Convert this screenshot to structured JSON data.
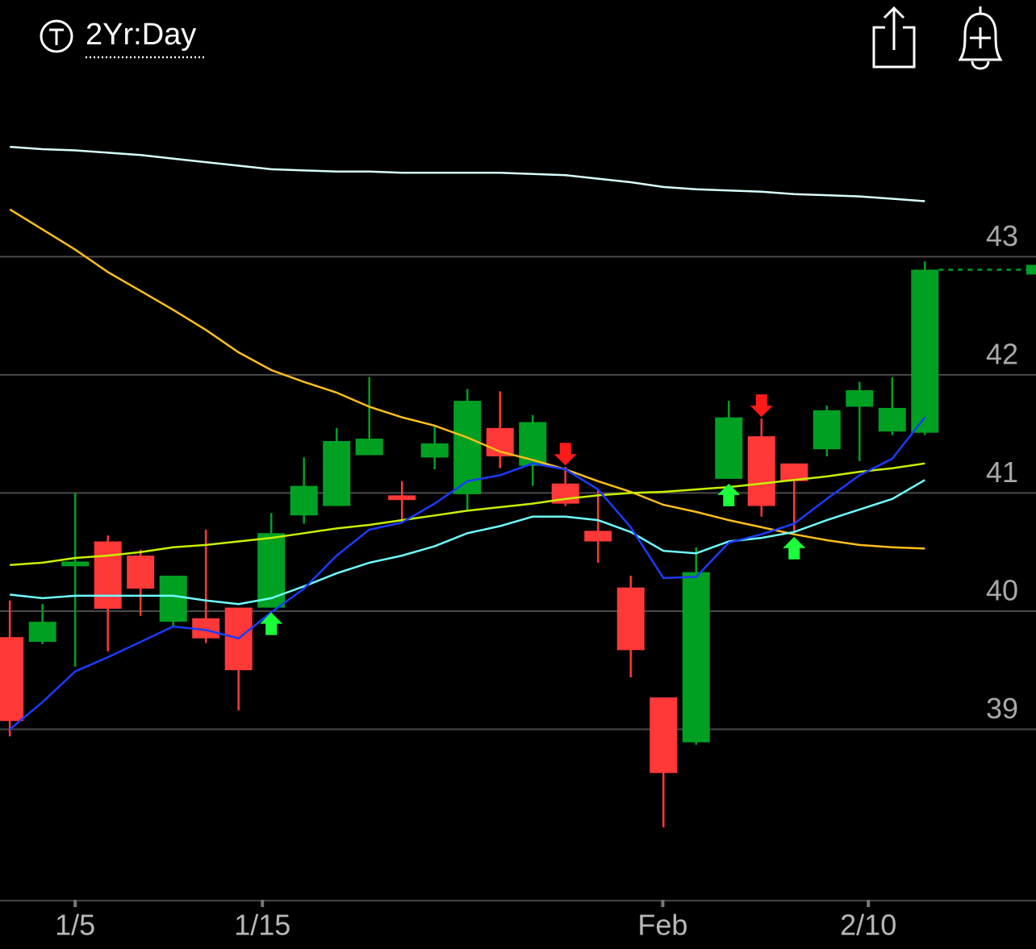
{
  "header": {
    "range": "2Yr:Day"
  },
  "chart_data": {
    "type": "candlestick",
    "open": [
      39.78,
      39.74,
      40.38,
      40.59,
      40.47,
      39.91,
      39.94,
      40.03,
      40.03,
      40.81,
      40.89,
      41.32,
      40.98,
      41.3,
      40.99,
      41.55,
      41.23,
      41.08,
      40.68,
      40.2,
      39.27,
      38.89,
      41.12,
      41.48,
      41.25,
      41.37,
      41.73,
      41.52,
      41.51
    ],
    "high": [
      40.09,
      40.06,
      41.0,
      40.64,
      40.52,
      40.3,
      40.69,
      40.03,
      40.83,
      41.3,
      41.55,
      41.98,
      41.1,
      41.56,
      41.88,
      41.86,
      41.66,
      41.22,
      41.03,
      40.3,
      39.27,
      40.54,
      41.78,
      41.63,
      41.25,
      41.74,
      41.94,
      41.98,
      42.96
    ],
    "low": [
      38.94,
      39.72,
      39.53,
      39.66,
      39.96,
      39.86,
      39.73,
      39.16,
      40.03,
      40.74,
      40.89,
      41.32,
      40.75,
      41.2,
      40.86,
      41.21,
      41.06,
      40.89,
      40.41,
      39.44,
      38.17,
      38.87,
      41.12,
      40.8,
      40.67,
      41.31,
      41.27,
      41.49,
      41.49
    ],
    "close": [
      39.07,
      39.91,
      40.42,
      40.02,
      40.19,
      40.3,
      39.77,
      39.5,
      40.66,
      41.06,
      41.44,
      41.46,
      40.94,
      41.42,
      41.78,
      41.31,
      41.6,
      40.91,
      40.59,
      39.67,
      38.63,
      40.33,
      41.64,
      40.89,
      41.1,
      41.7,
      41.87,
      41.72,
      42.89
    ],
    "up_color": "#00a023",
    "down_color": "#ff3838",
    "series": [
      {
        "color": "#d8ffff",
        "values": [
          43.93,
          43.91,
          43.9,
          43.88,
          43.86,
          43.83,
          43.8,
          43.77,
          43.74,
          43.73,
          43.72,
          43.72,
          43.71,
          43.71,
          43.71,
          43.71,
          43.7,
          43.69,
          43.66,
          43.63,
          43.59,
          43.57,
          43.56,
          43.55,
          43.53,
          43.52,
          43.51,
          43.49,
          43.47
        ]
      },
      {
        "color": "#ffbf1a",
        "values": [
          43.4,
          43.23,
          43.06,
          42.87,
          42.71,
          42.55,
          42.38,
          42.19,
          42.04,
          41.94,
          41.85,
          41.73,
          41.64,
          41.57,
          41.47,
          41.35,
          41.28,
          41.2,
          41.1,
          41.01,
          40.9,
          40.84,
          40.77,
          40.71,
          40.65,
          40.6,
          40.56,
          40.54,
          40.53
        ]
      },
      {
        "color": "#c8f000",
        "values": [
          40.39,
          40.41,
          40.45,
          40.47,
          40.5,
          40.54,
          40.56,
          40.59,
          40.62,
          40.66,
          40.7,
          40.73,
          40.77,
          40.81,
          40.85,
          40.88,
          40.91,
          40.95,
          40.98,
          41.0,
          41.01,
          41.03,
          41.05,
          41.08,
          41.11,
          41.14,
          41.18,
          41.21,
          41.25
        ]
      },
      {
        "color": "#70ffff",
        "values": [
          40.14,
          40.11,
          40.13,
          40.13,
          40.13,
          40.13,
          40.09,
          40.06,
          40.11,
          40.21,
          40.32,
          40.41,
          40.47,
          40.55,
          40.66,
          40.72,
          40.8,
          40.8,
          40.77,
          40.67,
          40.51,
          40.49,
          40.59,
          40.62,
          40.67,
          40.77,
          40.86,
          40.95,
          41.11
        ]
      },
      {
        "color": "#1a3cff",
        "values": [
          39.0,
          39.23,
          39.49,
          39.61,
          39.74,
          39.87,
          39.84,
          39.77,
          39.99,
          40.19,
          40.47,
          40.69,
          40.75,
          40.91,
          41.1,
          41.15,
          41.25,
          41.2,
          41.03,
          40.71,
          40.28,
          40.29,
          40.58,
          40.65,
          40.74,
          40.95,
          41.15,
          41.29,
          41.64
        ]
      }
    ],
    "buy_signals": [
      8,
      22,
      24
    ],
    "sell_signals": [
      17,
      23
    ],
    "buy_color": "#1aff3a",
    "sell_color": "#ff1a1a",
    "xlim": [
      -0.3,
      31.4
    ],
    "xticks": [
      {
        "value": 2.0,
        "label": "1/5"
      },
      {
        "value": 7.73,
        "label": "1/15"
      },
      {
        "value": 19.98,
        "label": "Feb"
      },
      {
        "value": 26.27,
        "label": "2/10"
      }
    ],
    "ylim": [
      37.55,
      44.49
    ],
    "yticks": [
      39,
      40,
      41,
      42,
      43
    ],
    "grid": true
  }
}
